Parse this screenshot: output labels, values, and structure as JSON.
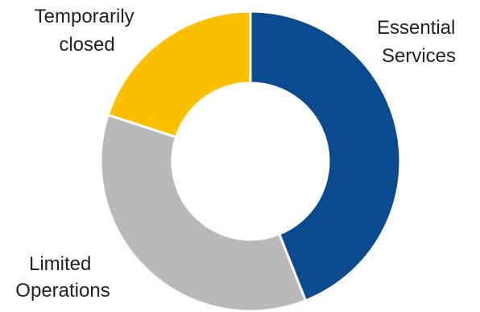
{
  "chart_data": {
    "type": "pie",
    "variant": "donut",
    "title": "",
    "slices": [
      {
        "label_lines": [
          "Essential",
          "Services"
        ],
        "value": 44,
        "color": "#0a4a8e"
      },
      {
        "label_lines": [
          "Limited",
          "Operations"
        ],
        "value": 36,
        "color": "#b9b9b9"
      },
      {
        "label_lines": [
          "Temporarily",
          "closed"
        ],
        "value": 20,
        "color": "#fdc000"
      }
    ],
    "legend": "none"
  }
}
